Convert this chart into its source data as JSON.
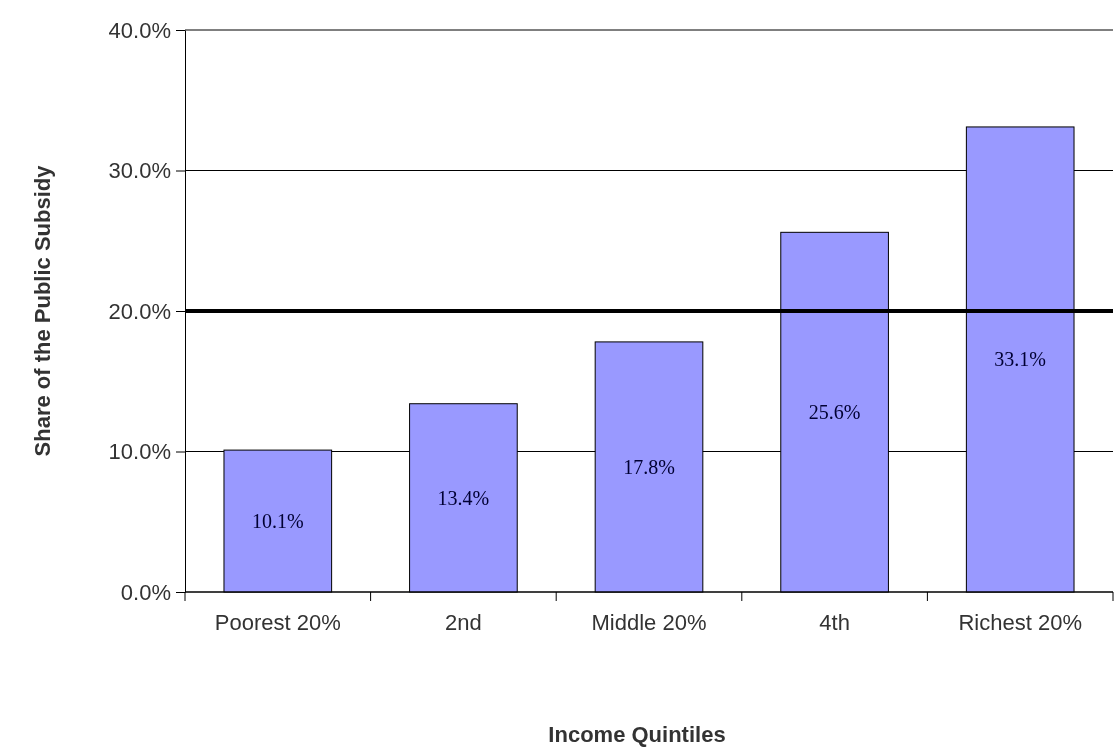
{
  "chart_data": {
    "type": "bar",
    "xlabel": "Income Quintiles",
    "ylabel": "Share of the Public Subsidy",
    "categories": [
      "Poorest 20%",
      "2nd",
      "Middle 20%",
      "4th",
      "Richest 20%"
    ],
    "values": [
      10.1,
      13.4,
      17.8,
      25.6,
      33.1
    ],
    "value_labels": [
      "10.1%",
      "13.4%",
      "17.8%",
      "25.6%",
      "33.1%"
    ],
    "color": "#9999ff",
    "ylim": [
      0,
      40
    ],
    "yticks": [
      {
        "value": 0,
        "label": "0.0%"
      },
      {
        "value": 10,
        "label": "10.0%"
      },
      {
        "value": 20,
        "label": "20.0%"
      },
      {
        "value": 30,
        "label": "30.0%"
      },
      {
        "value": 40,
        "label": "40.0%"
      }
    ],
    "grid": "y",
    "ref_lines": [
      {
        "axis": "y",
        "value": 20,
        "color": "#000000"
      }
    ]
  }
}
